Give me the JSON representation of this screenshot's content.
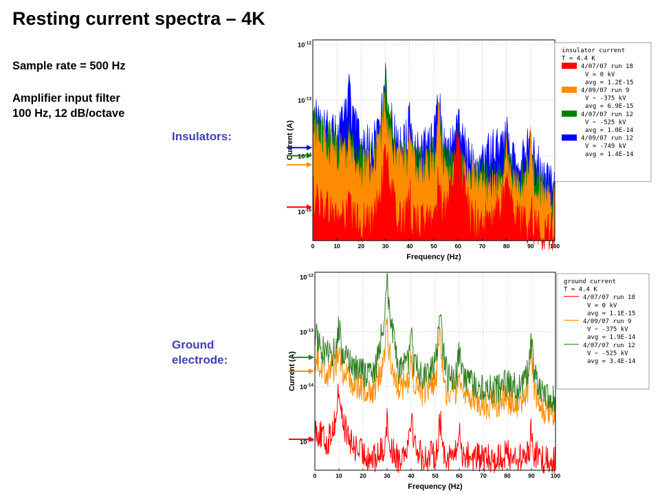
{
  "slide": {
    "title": "Resting current spectra – 4K",
    "sample_rate": "Sample rate = 500 Hz",
    "filter_line1": "Amplifier input filter",
    "filter_line2": "100 Hz, 12 dB/octave",
    "insulators_label": "Insulators:",
    "ground_label_line1": "Ground",
    "ground_label_line2": "electrode:"
  },
  "chart_data": [
    {
      "type": "area",
      "scale": "log-y",
      "xlabel": "Frequency (Hz)",
      "ylabel": "Current (A)",
      "xlim": [
        0,
        100
      ],
      "ylim": [
        3e-16,
        1.2e-12
      ],
      "x_ticks": [
        "0",
        "10",
        "20",
        "30",
        "40",
        "50",
        "60",
        "70",
        "80",
        "90",
        "100"
      ],
      "y_ticks": [
        "10-12",
        "10-13",
        "10-14",
        "10-15"
      ],
      "legend_title": [
        "insulator current",
        "T = 4.4 K"
      ],
      "legend_position": "right",
      "grid": true,
      "peaks_hz": [
        15,
        30,
        40,
        52,
        60,
        80,
        90
      ],
      "series": [
        {
          "name": "4/07/07 run 18",
          "details": [
            "V = 0 kV",
            "avg = 1.2E-15"
          ],
          "color": "#ff0000",
          "avg": 1.2e-15,
          "x": [
            0,
            5,
            10,
            15,
            20,
            25,
            30,
            35,
            40,
            45,
            50,
            52,
            55,
            60,
            65,
            70,
            75,
            80,
            85,
            90,
            95,
            100
          ],
          "y": [
            2.5e-15,
            1.5e-15,
            1.1e-15,
            1e-15,
            8e-16,
            8e-16,
            1e-14,
            9e-16,
            1e-15,
            8e-16,
            1e-15,
            3e-15,
            1e-15,
            1.5e-14,
            1e-15,
            8e-16,
            9e-16,
            3e-15,
            9e-16,
            7e-16,
            6e-16,
            6e-16
          ]
        },
        {
          "name": "4/09/07 run 9",
          "details": [
            "V ~ -375 kV",
            "avg = 6.9E-15"
          ],
          "color": "#ff8c00",
          "avg": 6.9e-15,
          "x": [
            0,
            5,
            10,
            15,
            20,
            25,
            30,
            35,
            40,
            45,
            50,
            52,
            55,
            60,
            65,
            70,
            75,
            80,
            85,
            90,
            95,
            100
          ],
          "y": [
            4e-14,
            2e-14,
            1.5e-14,
            1.2e-14,
            7e-15,
            8e-15,
            6e-14,
            8e-15,
            1e-14,
            6e-15,
            1e-14,
            3e-14,
            6e-15,
            8e-15,
            5e-15,
            4e-15,
            3e-15,
            6e-15,
            3e-15,
            8e-15,
            2e-15,
            1.5e-15
          ]
        },
        {
          "name": "4/07/07 run 12",
          "details": [
            "V ~ -525 kV",
            "avg = 1.0E-14"
          ],
          "color": "#008000",
          "avg": 1e-14,
          "x": [
            0,
            5,
            10,
            15,
            20,
            25,
            30,
            35,
            40,
            45,
            50,
            52,
            55,
            60,
            65,
            70,
            75,
            80,
            85,
            90,
            95,
            100
          ],
          "y": [
            6e-14,
            3e-14,
            2e-14,
            1.8e-14,
            1e-14,
            1e-14,
            1e-13,
            1e-14,
            1.3e-14,
            8e-15,
            1.3e-14,
            4e-14,
            8e-15,
            1e-14,
            6e-15,
            5e-15,
            4e-15,
            8e-15,
            4e-15,
            9e-15,
            3e-15,
            2e-15
          ]
        },
        {
          "name": "4/09/07 run 12",
          "details": [
            "V = -749 kV",
            "avg = 1.4E-14"
          ],
          "color": "#0000ff",
          "avg": 1.4e-14,
          "x": [
            0,
            5,
            10,
            15,
            20,
            25,
            30,
            35,
            40,
            45,
            50,
            52,
            55,
            60,
            65,
            70,
            75,
            80,
            85,
            90,
            95,
            100
          ],
          "y": [
            7e-14,
            4e-14,
            3e-14,
            1e-13,
            2e-14,
            2e-14,
            1.5e-13,
            2e-14,
            3e-14,
            1.5e-14,
            3e-14,
            8e-14,
            1.2e-14,
            4e-14,
            1e-14,
            1e-14,
            2e-14,
            1.5e-14,
            1e-14,
            2e-14,
            6e-15,
            4e-15
          ]
        }
      ]
    },
    {
      "type": "line",
      "scale": "log-y",
      "xlabel": "Frequency (Hz)",
      "ylabel": "Current (A)",
      "xlim": [
        0,
        100
      ],
      "ylim": [
        3e-16,
        1.2e-12
      ],
      "x_ticks": [
        "0",
        "10",
        "20",
        "30",
        "40",
        "50",
        "60",
        "70",
        "80",
        "90",
        "100"
      ],
      "y_ticks": [
        "10-12",
        "10-13",
        "10-14",
        "10-15"
      ],
      "legend_title": [
        "ground current",
        "T = 4.4 K"
      ],
      "legend_position": "right",
      "grid": true,
      "peaks_hz": [
        10,
        30,
        40,
        52,
        60,
        90
      ],
      "series": [
        {
          "name": "4/07/07 run 18",
          "details": [
            "V = 0 kV",
            "avg = 1.1E-15"
          ],
          "color": "#ff0000",
          "avg": 1.1e-15,
          "x": [
            0,
            5,
            10,
            15,
            20,
            25,
            30,
            35,
            40,
            45,
            50,
            52,
            55,
            60,
            65,
            70,
            75,
            80,
            85,
            90,
            95,
            100
          ],
          "y": [
            3e-15,
            1.5e-15,
            6e-15,
            1.5e-15,
            1e-15,
            8e-16,
            1.5e-15,
            8e-16,
            2e-15,
            8e-16,
            1e-15,
            1.5e-15,
            9e-16,
            1e-15,
            9e-16,
            8e-16,
            8e-16,
            1e-15,
            8e-16,
            1e-15,
            8e-16,
            8e-16
          ]
        },
        {
          "name": "4/09/07 run 9",
          "details": [
            "V ~ -375 kV",
            "avg = 1.9E-14"
          ],
          "color": "#ff8c00",
          "avg": 1.9e-14,
          "x": [
            0,
            5,
            10,
            15,
            20,
            25,
            30,
            35,
            40,
            45,
            50,
            52,
            55,
            60,
            65,
            70,
            75,
            80,
            85,
            90,
            95,
            100
          ],
          "y": [
            6e-14,
            3e-14,
            4e-14,
            2e-14,
            1.5e-14,
            1.5e-14,
            8e-14,
            1.5e-14,
            2e-14,
            1.2e-14,
            2e-14,
            6e-14,
            1.2e-14,
            1.5e-14,
            1e-14,
            8e-15,
            8e-15,
            1e-14,
            8e-15,
            2e-14,
            6e-15,
            6e-15
          ]
        },
        {
          "name": "4/07/07 run 12",
          "details": [
            "V ~ -525 kV",
            "avg = 3.4E-14"
          ],
          "color": "#2e7d1f",
          "avg": 3.4e-14,
          "x": [
            0,
            5,
            10,
            15,
            20,
            25,
            30,
            35,
            40,
            45,
            50,
            52,
            55,
            60,
            65,
            70,
            75,
            80,
            85,
            90,
            95,
            100
          ],
          "y": [
            1.5e-13,
            6e-14,
            8e-14,
            4e-14,
            3e-14,
            3e-14,
            6e-13,
            3e-14,
            5e-14,
            2.5e-14,
            4e-14,
            2e-13,
            2.5e-14,
            2.5e-14,
            2e-14,
            1.5e-14,
            1.5e-14,
            2e-14,
            1.5e-14,
            4e-14,
            1.2e-14,
            1e-14
          ]
        }
      ]
    }
  ]
}
